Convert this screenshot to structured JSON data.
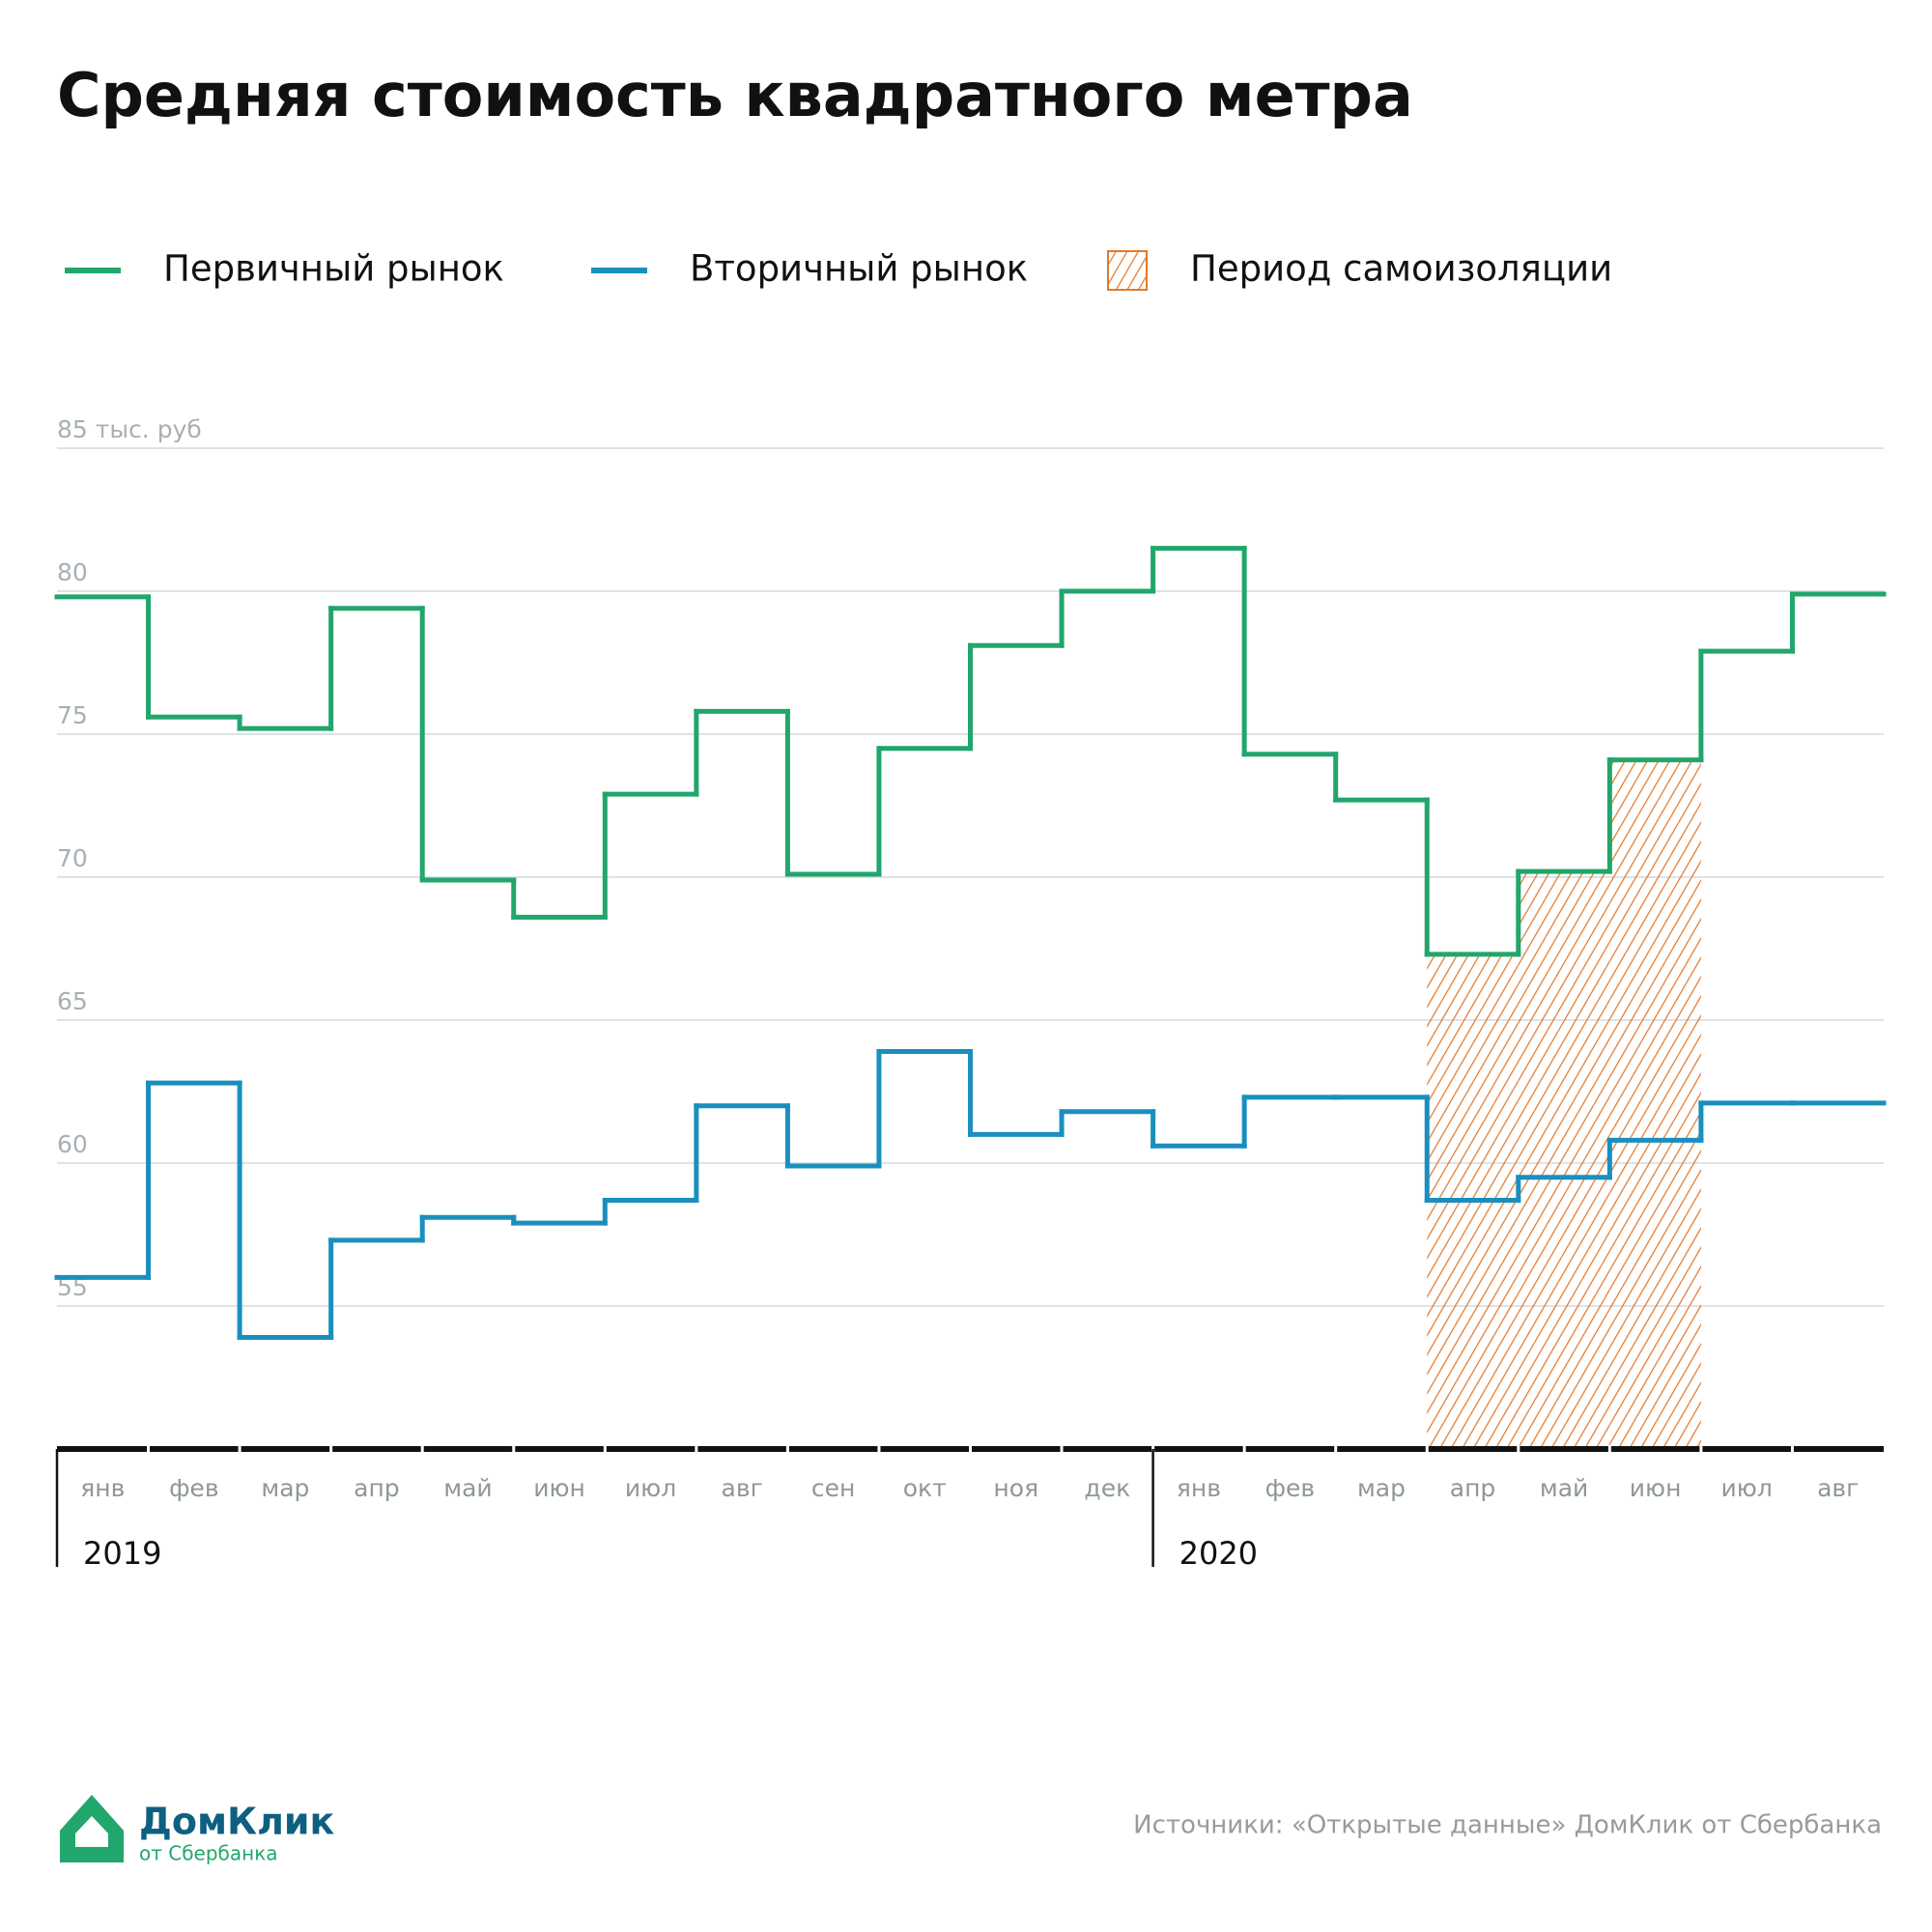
{
  "chart_data": {
    "type": "step",
    "title": "Средняя стоимость квадратного метра",
    "categories": [
      "янв",
      "фев",
      "мар",
      "апр",
      "май",
      "июн",
      "июл",
      "авг",
      "сен",
      "окт",
      "ноя",
      "дек",
      "янв",
      "фев",
      "мар",
      "апр",
      "май",
      "июн",
      "июл",
      "авг"
    ],
    "year_labels": [
      {
        "label": "2019",
        "first_index": 0
      },
      {
        "label": "2020",
        "first_index": 12
      }
    ],
    "series": [
      {
        "name": "Первичный рынок",
        "color": "#21a66b",
        "values": [
          79.8,
          75.6,
          75.2,
          79.4,
          69.9,
          68.6,
          72.9,
          75.8,
          70.1,
          74.5,
          78.1,
          80.0,
          81.5,
          74.3,
          72.7,
          67.3,
          70.2,
          74.1,
          77.9,
          79.9
        ]
      },
      {
        "name": "Вторичный рынок",
        "color": "#1a8fbf",
        "values": [
          56.0,
          62.8,
          53.9,
          57.3,
          58.1,
          57.9,
          58.7,
          62.0,
          59.9,
          63.9,
          61.0,
          61.8,
          60.6,
          62.3,
          62.3,
          58.7,
          59.5,
          60.8,
          62.1,
          62.1
        ]
      }
    ],
    "shaded_period": {
      "name": "Период самоизоляции",
      "color": "#e07a2e",
      "from_index": 15,
      "to_index": 17
    },
    "ylim": [
      50,
      85
    ],
    "yticks": [
      55,
      60,
      65,
      70,
      75,
      80,
      {
        "value": 85,
        "label": "85 тыс. руб"
      }
    ],
    "grid": true
  },
  "footer": {
    "logo_name": "ДомКлик",
    "logo_subtitle": "от Сбербанка",
    "source": "Источники: «Открытые данные» ДомКлик от Сбербанка"
  }
}
